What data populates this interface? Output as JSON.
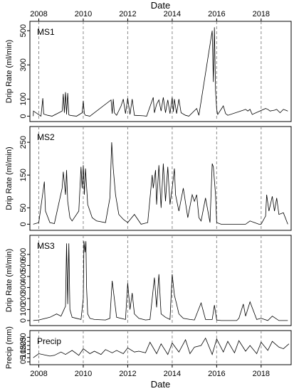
{
  "top_axis_title": "Date",
  "bottom_axis_title": "Date",
  "x_axis": {
    "min": 2007.6,
    "max": 2019.35,
    "ticks": [
      2008,
      2010,
      2012,
      2014,
      2016,
      2018
    ],
    "tick_labels": [
      "2008",
      "2010",
      "2012",
      "2014",
      "2016",
      "2018"
    ],
    "dashed_reference_lines": [
      2008,
      2010,
      2012,
      2014,
      2016,
      2018
    ]
  },
  "chart_data": [
    {
      "type": "line",
      "panel_label": "MS1",
      "ylabel": "Drip Rate (ml/min)",
      "ylim": [
        -15,
        530
      ],
      "yticks": [
        0,
        100,
        300,
        500
      ],
      "ytick_labels": [
        "0",
        "100",
        "300",
        "500"
      ],
      "series": [
        {
          "x": [
            2007.75,
            2007.76,
            2008.1,
            2008.18,
            2008.22,
            2008.4,
            2008.6,
            2009.05,
            2009.1,
            2009.15,
            2009.2,
            2009.25,
            2009.3,
            2009.35,
            2009.4,
            2009.45,
            2009.5,
            2009.7,
            2009.95,
            2010.0,
            2010.05,
            2010.1,
            2010.3,
            2011.25,
            2011.3,
            2011.35,
            2011.4,
            2011.5,
            2011.7,
            2011.8,
            2011.9,
            2012.0,
            2012.1,
            2012.2,
            2012.3,
            2012.7,
            2012.85,
            2013.15,
            2013.2,
            2013.3,
            2013.4,
            2013.5,
            2013.6,
            2013.7,
            2013.8,
            2013.9,
            2014.0,
            2014.05,
            2014.1,
            2014.2,
            2014.3,
            2014.4,
            2014.6,
            2014.75,
            2015.1,
            2015.2,
            2015.8,
            2015.85,
            2015.9,
            2015.95,
            2016.0,
            2016.05,
            2016.3,
            2016.4,
            2016.5,
            2017.2,
            2017.3,
            2017.4,
            2017.5,
            2017.6,
            2018.2,
            2018.3,
            2018.4,
            2018.6,
            2018.7,
            2018.85,
            2019.0,
            2019.1,
            2019.2
          ],
          "y": [
            0,
            30,
            0,
            105,
            12,
            5,
            0,
            30,
            130,
            20,
            140,
            10,
            135,
            8,
            5,
            4,
            3,
            0,
            20,
            90,
            15,
            5,
            0,
            95,
            15,
            100,
            20,
            5,
            60,
            100,
            15,
            105,
            10,
            100,
            5,
            2,
            0,
            110,
            20,
            70,
            95,
            30,
            110,
            20,
            95,
            15,
            110,
            25,
            100,
            15,
            100,
            20,
            5,
            0,
            45,
            5,
            500,
            200,
            520,
            150,
            40,
            10,
            60,
            15,
            5,
            35,
            40,
            30,
            40,
            10,
            45,
            40,
            30,
            35,
            40,
            20,
            40,
            35,
            30
          ]
        }
      ]
    },
    {
      "type": "line",
      "panel_label": "MS2",
      "ylabel": "Drip Rate (ml/min)",
      "ylim": [
        -10,
        285
      ],
      "yticks": [
        0,
        50,
        150,
        250
      ],
      "ytick_labels": [
        "0",
        "50",
        "150",
        "250"
      ],
      "series": [
        {
          "x": [
            2007.75,
            2008.0,
            2008.25,
            2008.3,
            2008.5,
            2008.7,
            2009.05,
            2009.1,
            2009.2,
            2009.25,
            2009.3,
            2009.4,
            2009.5,
            2009.8,
            2009.9,
            2009.95,
            2010.0,
            2010.05,
            2010.1,
            2010.2,
            2010.4,
            2010.6,
            2011.0,
            2011.2,
            2011.28,
            2011.35,
            2011.45,
            2011.6,
            2011.8,
            2011.9,
            2012.0,
            2012.3,
            2012.6,
            2012.9,
            2013.1,
            2013.15,
            2013.25,
            2013.3,
            2013.4,
            2013.5,
            2013.6,
            2013.7,
            2013.8,
            2013.9,
            2014.0,
            2014.1,
            2014.15,
            2014.3,
            2014.5,
            2014.7,
            2014.9,
            2015.0,
            2015.1,
            2015.2,
            2015.3,
            2015.5,
            2015.7,
            2015.8,
            2015.85,
            2015.95,
            2016.0,
            2016.2,
            2016.4,
            2017.3,
            2017.5,
            2017.7,
            2017.9,
            2018.0,
            2018.2,
            2018.25,
            2018.35,
            2018.5,
            2018.6,
            2018.7,
            2018.8,
            2019.0,
            2019.2
          ],
          "y": [
            0,
            5,
            130,
            40,
            5,
            2,
            110,
            160,
            90,
            165,
            70,
            20,
            10,
            40,
            175,
            110,
            180,
            90,
            170,
            60,
            20,
            10,
            5,
            80,
            250,
            170,
            90,
            30,
            15,
            10,
            5,
            30,
            0,
            5,
            150,
            110,
            165,
            60,
            180,
            50,
            185,
            70,
            175,
            60,
            110,
            170,
            90,
            40,
            110,
            20,
            90,
            70,
            90,
            20,
            10,
            80,
            5,
            185,
            175,
            90,
            5,
            0,
            0,
            0,
            10,
            5,
            0,
            0,
            25,
            90,
            40,
            85,
            40,
            80,
            30,
            35,
            0
          ]
        }
      ]
    },
    {
      "type": "line",
      "panel_label": "MS3",
      "ylabel": "Drip Rate (ml/min)",
      "ylim": [
        -20,
        735
      ],
      "yticks": [
        0,
        100,
        200,
        300,
        400,
        500,
        600
      ],
      "ytick_labels": [
        "0",
        "100",
        "200",
        "300",
        "400",
        "500",
        "600"
      ],
      "series": [
        {
          "x": [
            2007.75,
            2008.0,
            2008.5,
            2008.8,
            2009.0,
            2009.2,
            2009.25,
            2009.3,
            2009.35,
            2009.4,
            2009.5,
            2009.7,
            2009.9,
            2010.0,
            2010.03,
            2010.08,
            2010.12,
            2010.15,
            2010.2,
            2010.3,
            2010.5,
            2011.0,
            2011.2,
            2011.3,
            2011.5,
            2011.9,
            2012.0,
            2012.1,
            2012.2,
            2012.3,
            2012.5,
            2012.8,
            2013.0,
            2013.2,
            2013.3,
            2013.4,
            2013.5,
            2013.7,
            2013.9,
            2014.0,
            2014.1,
            2014.2,
            2014.3,
            2014.5,
            2014.8,
            2015.0,
            2015.3,
            2015.5,
            2015.8,
            2015.9,
            2016.0,
            2016.2,
            2016.5,
            2016.9,
            2017.0,
            2017.2,
            2017.3,
            2017.5,
            2017.8,
            2018.0,
            2018.3,
            2018.5,
            2018.8,
            2019.0,
            2019.2
          ],
          "y": [
            0,
            5,
            30,
            60,
            40,
            130,
            700,
            150,
            700,
            100,
            30,
            20,
            10,
            200,
            720,
            620,
            720,
            300,
            60,
            20,
            10,
            5,
            20,
            360,
            30,
            10,
            340,
            100,
            250,
            60,
            20,
            5,
            10,
            390,
            120,
            420,
            60,
            30,
            10,
            420,
            230,
            150,
            60,
            20,
            10,
            5,
            160,
            10,
            10,
            140,
            5,
            0,
            0,
            0,
            20,
            150,
            40,
            170,
            10,
            20,
            0,
            40,
            0,
            0,
            0
          ]
        }
      ]
    },
    {
      "type": "line",
      "panel_label": "Precip",
      "ylabel": "Precip (mm)",
      "ylim": [
        0,
        33
      ],
      "yticks": [
        0,
        5,
        10,
        15,
        20,
        25,
        30
      ],
      "ytick_labels": [
        "0",
        "5",
        "10",
        "15",
        "20",
        "25",
        "30"
      ],
      "series": [
        {
          "x": [
            2007.75,
            2008.0,
            2008.5,
            2008.7,
            2009.0,
            2009.2,
            2009.5,
            2009.8,
            2010.0,
            2010.3,
            2010.5,
            2010.8,
            2011.0,
            2011.3,
            2011.5,
            2011.8,
            2012.0,
            2012.3,
            2012.5,
            2012.8,
            2013.0,
            2013.3,
            2013.5,
            2013.8,
            2014.0,
            2014.3,
            2014.6,
            2014.8,
            2015.0,
            2015.3,
            2015.5,
            2015.8,
            2016.0,
            2016.3,
            2016.5,
            2016.8,
            2017.0,
            2017.3,
            2017.5,
            2017.8,
            2018.0,
            2018.3,
            2018.5,
            2018.8,
            2019.0,
            2019.25
          ],
          "y": [
            5,
            10,
            7,
            8,
            12,
            9,
            14,
            8,
            16,
            10,
            13,
            9,
            15,
            11,
            14,
            10,
            17,
            12,
            13,
            11,
            24,
            10,
            22,
            9,
            23,
            12,
            27,
            10,
            18,
            20,
            29,
            9,
            28,
            12,
            25,
            11,
            26,
            13,
            20,
            10,
            24,
            14,
            25,
            18,
            16,
            22
          ]
        }
      ]
    }
  ]
}
